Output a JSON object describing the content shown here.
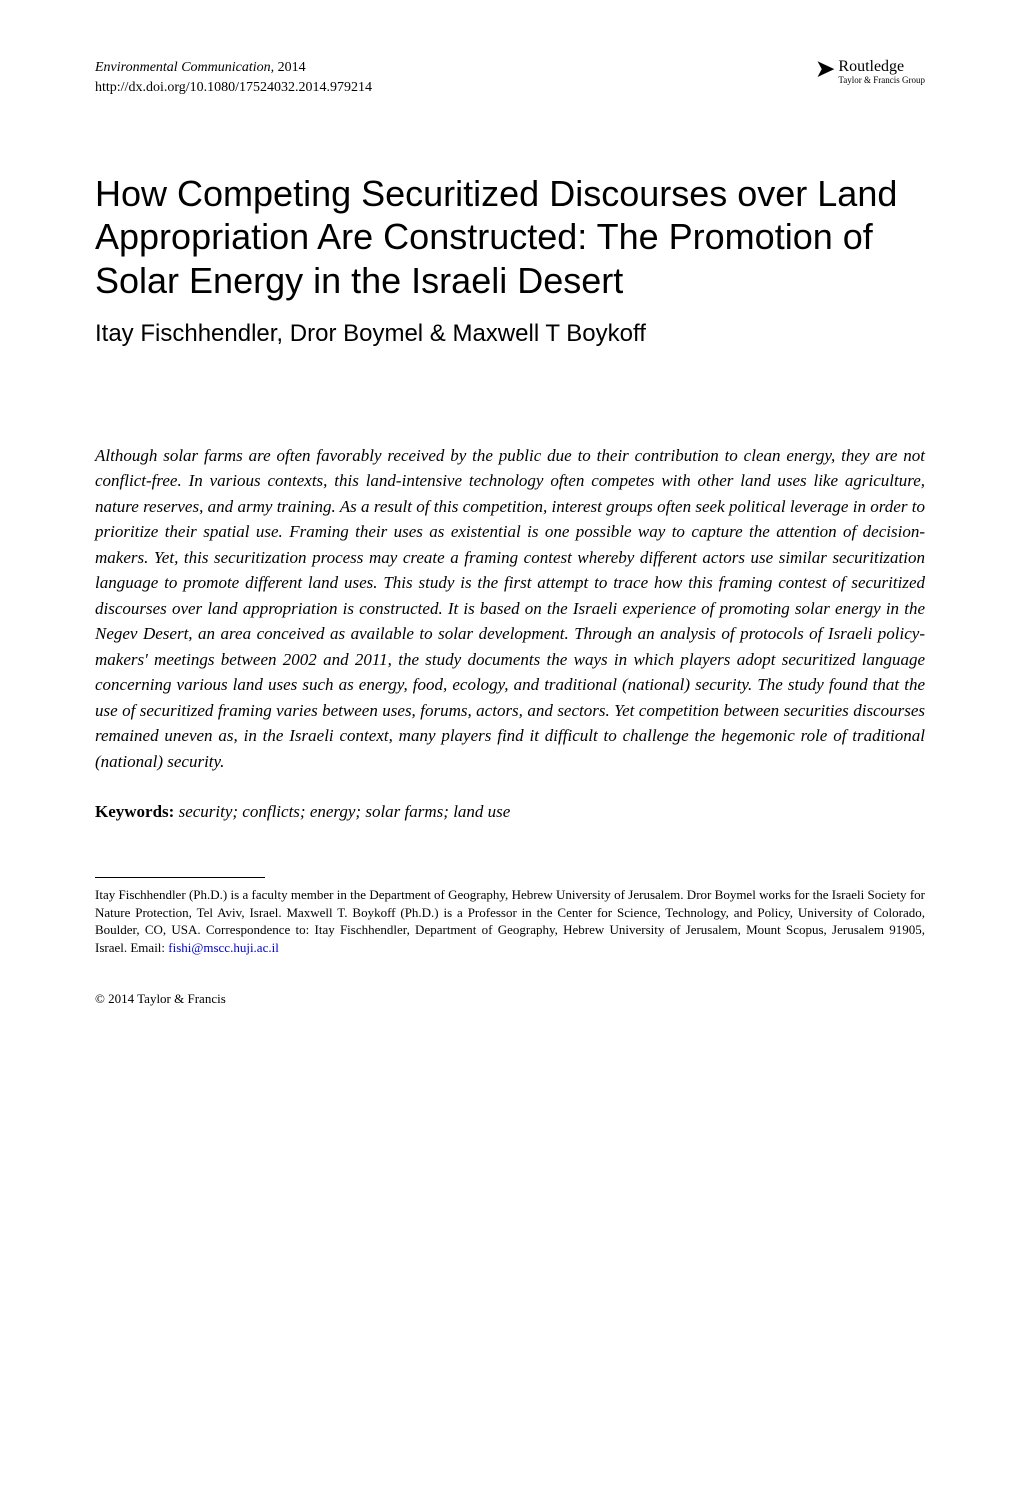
{
  "header": {
    "journal_name": "Environmental Communication,",
    "year": " 2014",
    "doi": "http://dx.doi.org/10.1080/17524032.2014.979214",
    "publisher_name": "Routledge",
    "publisher_group": "Taylor & Francis Group"
  },
  "title": "How Competing Securitized Discourses over Land Appropriation Are Constructed: The Promotion of Solar Energy in the Israeli Desert",
  "authors": "Itay Fischhendler, Dror Boymel & Maxwell T Boykoff",
  "abstract": "Although solar farms are often favorably received by the public due to their contribution to clean energy, they are not conflict-free. In various contexts, this land-intensive technology often competes with other land uses like agriculture, nature reserves, and army training. As a result of this competition, interest groups often seek political leverage in order to prioritize their spatial use. Framing their uses as existential is one possible way to capture the attention of decision-makers. Yet, this securitization process may create a framing contest whereby different actors use similar securitization language to promote different land uses. This study is the first attempt to trace how this framing contest of securitized discourses over land appropriation is constructed. It is based on the Israeli experience of promoting solar energy in the Negev Desert, an area conceived as available to solar development. Through an analysis of protocols of Israeli policy-makers' meetings between 2002 and 2011, the study documents the ways in which players adopt securitized language concerning various land uses such as energy, food, ecology, and traditional (national) security. The study found that the use of securitized framing varies between uses, forums, actors, and sectors. Yet competition between securities discourses remained uneven as, in the Israeli context, many players find it difficult to challenge the hegemonic role of traditional (national) security.",
  "keywords": {
    "label": "Keywords:",
    "text": " security; conflicts; energy; solar farms; land use"
  },
  "footnote": {
    "text_before_email": "Itay Fischhendler (Ph.D.) is a faculty member in the Department of Geography, Hebrew University of Jerusalem. Dror Boymel works for the Israeli Society for Nature Protection, Tel Aviv, Israel. Maxwell T. Boykoff (Ph.D.) is a Professor in the Center for Science, Technology, and Policy, University of Colorado, Boulder, CO, USA. Correspondence to: Itay Fischhendler, Department of Geography, Hebrew University of Jerusalem, Mount Scopus, Jerusalem 91905, Israel. Email: ",
    "email": "fishi@mscc.huji.ac.il"
  },
  "copyright": "© 2014 Taylor & Francis"
}
